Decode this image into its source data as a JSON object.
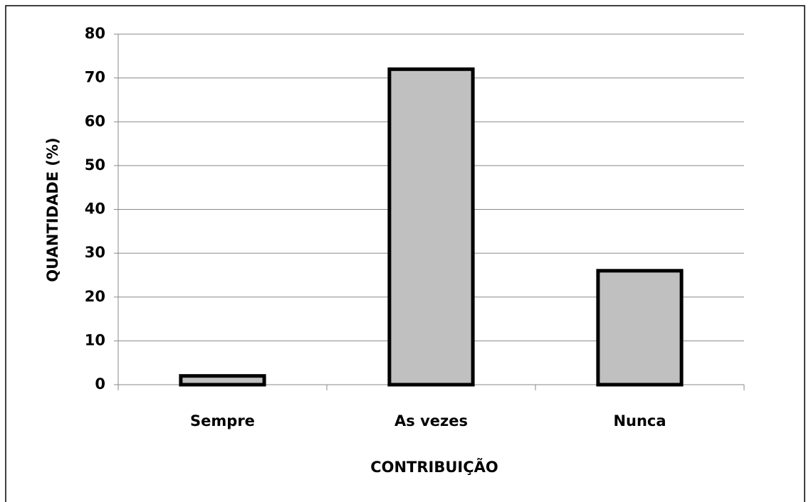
{
  "chart_data": {
    "type": "bar",
    "xlabel": "CONTRIBUIÇÃO",
    "ylabel": "QUANTIDADE (%)",
    "categories": [
      "Sempre",
      "As vezes",
      "Nunca"
    ],
    "values": [
      2,
      72,
      26
    ],
    "color": "#c0c0c0",
    "ylim": [
      0,
      80
    ],
    "yticks": [
      0,
      10,
      20,
      30,
      40,
      50,
      60,
      70,
      80
    ],
    "grid": true
  }
}
